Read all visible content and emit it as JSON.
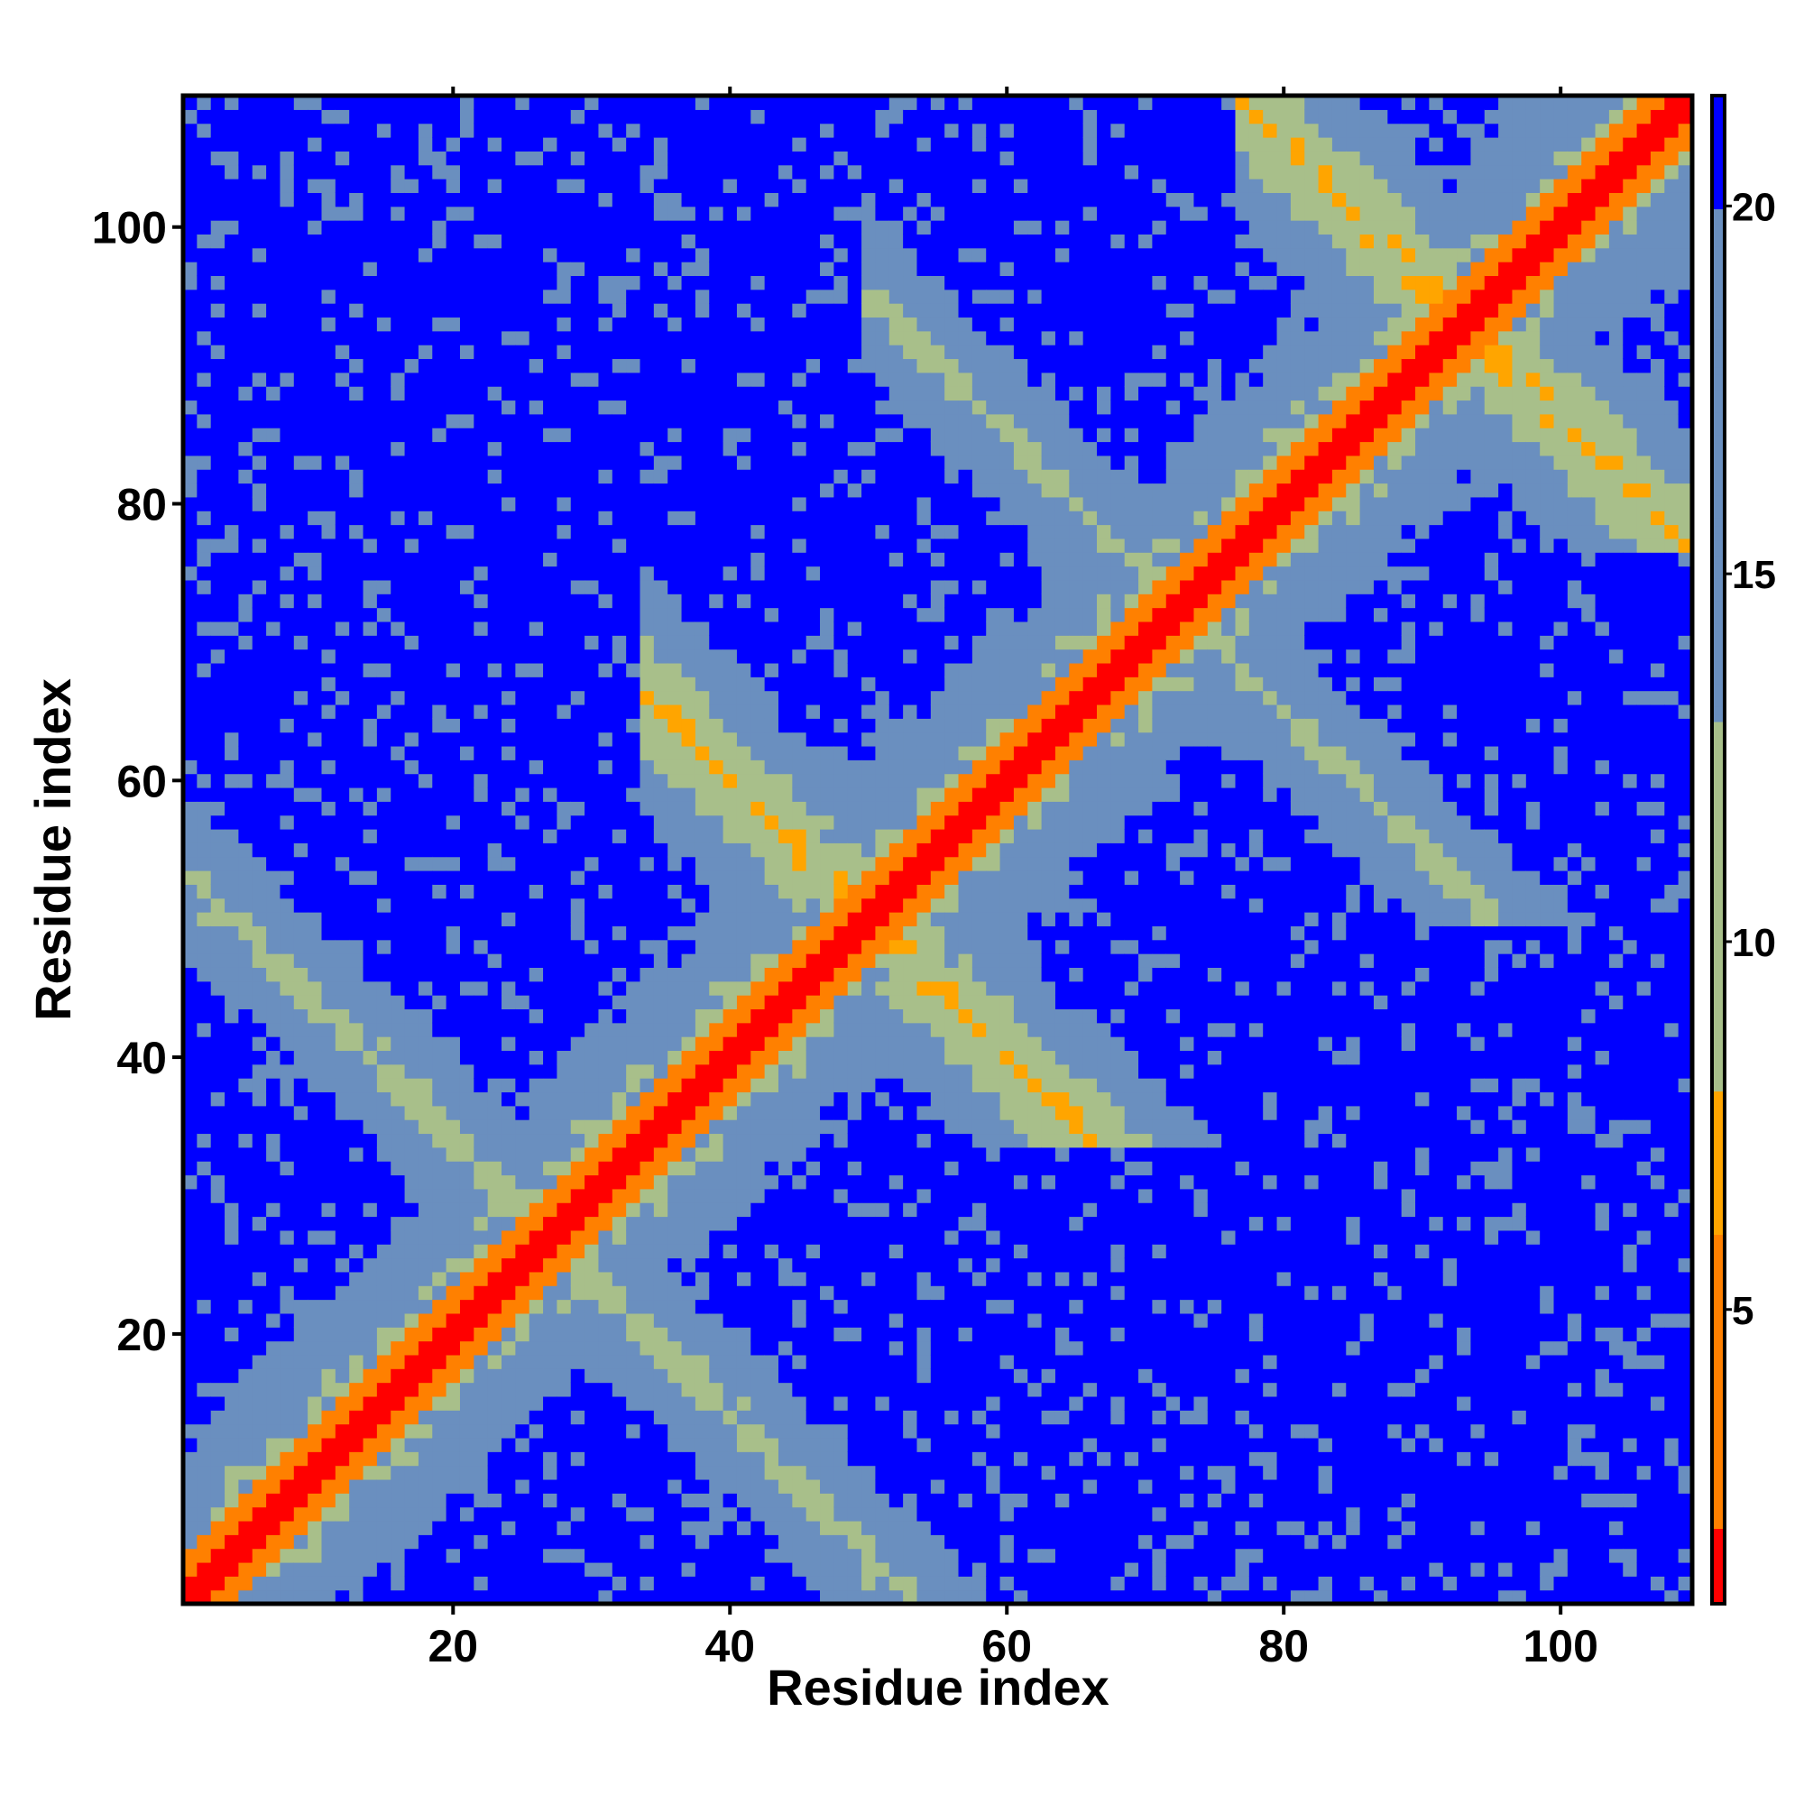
{
  "chart_data": {
    "type": "heatmap",
    "title": "",
    "xlabel": "Residue index",
    "ylabel": "Residue index",
    "xlim": [
      1,
      109
    ],
    "ylim": [
      1,
      109
    ],
    "x_ticks": [
      20,
      40,
      60,
      80,
      100
    ],
    "y_ticks": [
      20,
      40,
      60,
      80,
      100
    ],
    "n_residues": 109,
    "colorbar": {
      "ticks": [
        5,
        10,
        15,
        20
      ],
      "range": [
        1,
        21.5
      ],
      "colors": {
        "near": "#ff0000",
        "close": "#ff8000",
        "medium": "#ffa500",
        "mid": "#a8bf8a",
        "far": "#6a8fbf",
        "max": "#0000ff"
      }
    },
    "distance_model": "symmetric pairwise distance map; contact bands along diagonal and anti-diagonals near residues 50 and 93",
    "features": [
      {
        "kind": "diagonal",
        "range": [
          1,
          109
        ],
        "value": 1
      },
      {
        "kind": "antidiagonal",
        "sum": 100,
        "range": [
          34,
          66
        ],
        "value": 6
      },
      {
        "kind": "antidiagonal",
        "sum": 186,
        "range": [
          77,
          109
        ],
        "value": 6
      },
      {
        "kind": "antidiagonal",
        "sum": 145,
        "range": [
          50,
          95
        ],
        "value": 10
      },
      {
        "kind": "antidiagonal",
        "sum": 54,
        "range": [
          1,
          53
        ],
        "value": 10
      }
    ]
  }
}
